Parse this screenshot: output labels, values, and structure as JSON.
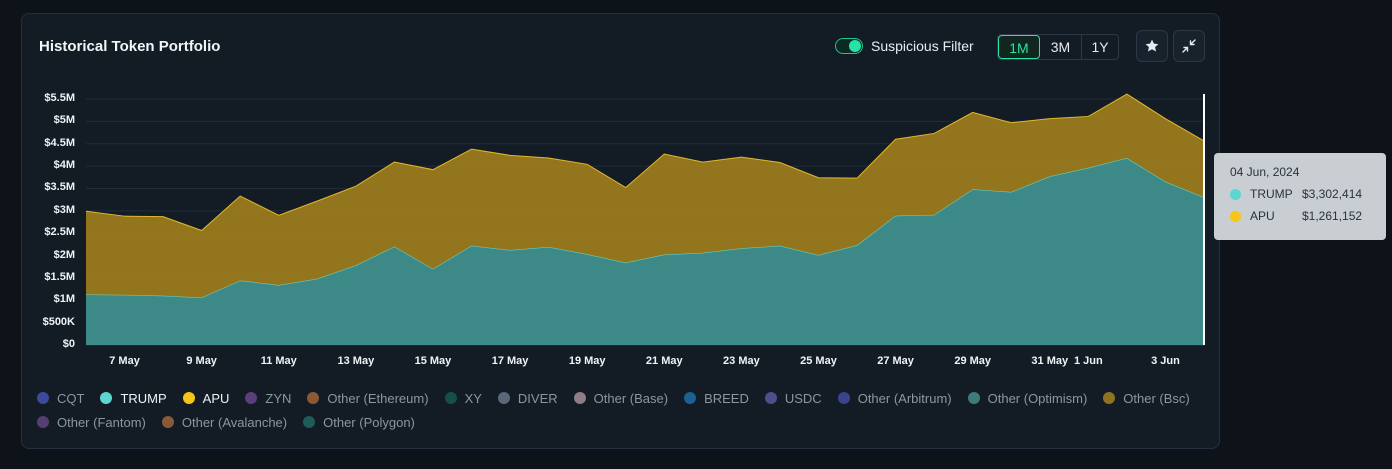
{
  "header": {
    "title": "Historical Token Portfolio",
    "filter_label": "Suspicious Filter",
    "ranges": [
      "1M",
      "3M",
      "1Y"
    ],
    "active_range": "1M"
  },
  "tooltip": {
    "date": "04 Jun, 2024",
    "rows": [
      {
        "name": "TRUMP",
        "value": "$3,302,414",
        "color": "#5ed6d0"
      },
      {
        "name": "APU",
        "value": "$1,261,152",
        "color": "#f5c518"
      }
    ]
  },
  "legend": [
    {
      "label": "CQT",
      "color": "#3b4a9c",
      "active": false
    },
    {
      "label": "TRUMP",
      "color": "#5ed6d0",
      "active": true
    },
    {
      "label": "APU",
      "color": "#f5c518",
      "active": true
    },
    {
      "label": "ZYN",
      "color": "#5a3f7c",
      "active": false
    },
    {
      "label": "Other (Ethereum)",
      "color": "#8a5a36",
      "active": false
    },
    {
      "label": "XY",
      "color": "#154e4b",
      "active": false
    },
    {
      "label": "DIVER",
      "color": "#5a6778",
      "active": false
    },
    {
      "label": "Other (Base)",
      "color": "#8e7c86",
      "active": false
    },
    {
      "label": "BREED",
      "color": "#1b5f93",
      "active": false
    },
    {
      "label": "USDC",
      "color": "#4b4f8e",
      "active": false
    },
    {
      "label": "Other (Arbitrum)",
      "color": "#3a438c",
      "active": false
    },
    {
      "label": "Other (Optimism)",
      "color": "#3c7c7a",
      "active": false
    },
    {
      "label": "Other (Bsc)",
      "color": "#8e7421",
      "active": false
    },
    {
      "label": "Other (Fantom)",
      "color": "#533f73",
      "active": false
    },
    {
      "label": "Other (Avalanche)",
      "color": "#8a5a36",
      "active": false
    },
    {
      "label": "Other (Polygon)",
      "color": "#1d5d59",
      "active": false
    }
  ],
  "chart_data": {
    "type": "area",
    "stacked": true,
    "x_tick_labels": [
      "7 May",
      "9 May",
      "11 May",
      "13 May",
      "15 May",
      "17 May",
      "19 May",
      "21 May",
      "23 May",
      "25 May",
      "27 May",
      "29 May",
      "31 May",
      "1 Jun",
      "3 Jun"
    ],
    "y_tick_labels": [
      "$0",
      "$500K",
      "$1M",
      "$1.5M",
      "$2M",
      "$2.5M",
      "$3M",
      "$3.5M",
      "$4M",
      "$4.5M",
      "$5M",
      "$5.5M"
    ],
    "ylim": [
      0,
      5500000
    ],
    "x_range_days": [
      0,
      29
    ],
    "x_tick_days": [
      1,
      3,
      5,
      7,
      9,
      11,
      13,
      15,
      17,
      19,
      21,
      23,
      25,
      26,
      28
    ],
    "hover_day": 29,
    "grid": true,
    "series": [
      {
        "name": "TRUMP",
        "color": "#3f8f8c",
        "line": "#5ed6d0",
        "values": [
          1130000,
          1120000,
          1100000,
          1060000,
          1440000,
          1340000,
          1480000,
          1780000,
          2200000,
          1700000,
          2220000,
          2120000,
          2190000,
          2030000,
          1840000,
          2020000,
          2060000,
          2160000,
          2220000,
          2010000,
          2230000,
          2890000,
          2910000,
          3480000,
          3420000,
          3770000,
          3960000,
          4180000,
          3650000,
          3302414
        ]
      },
      {
        "name": "APU",
        "color": "#9a7a1d",
        "line": "#e0b92d",
        "values": [
          1860000,
          1760000,
          1770000,
          1500000,
          1890000,
          1560000,
          1740000,
          1770000,
          1890000,
          2220000,
          2160000,
          2120000,
          1990000,
          2010000,
          1680000,
          2250000,
          2030000,
          2040000,
          1860000,
          1730000,
          1500000,
          1710000,
          1820000,
          1720000,
          1550000,
          1290000,
          1150000,
          1430000,
          1410000,
          1261152
        ]
      }
    ]
  }
}
